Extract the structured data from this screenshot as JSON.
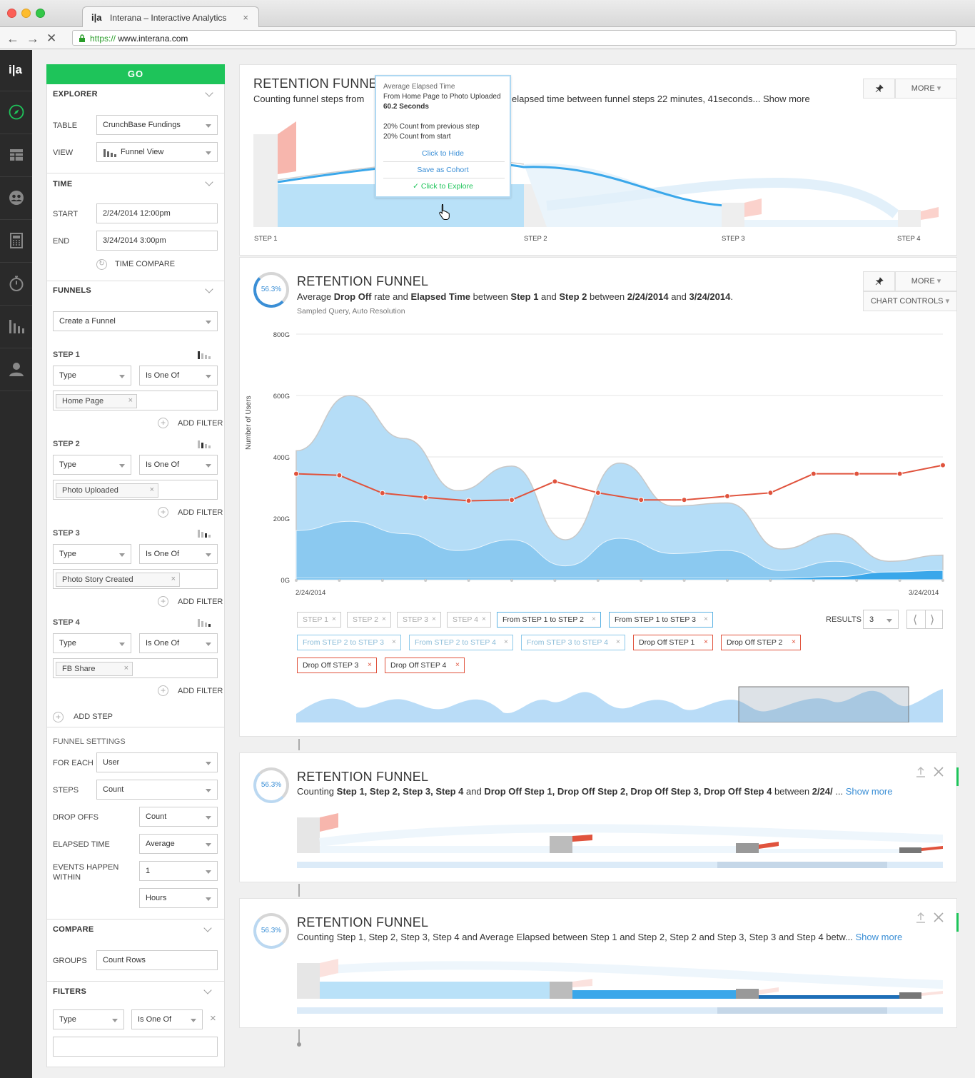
{
  "browser": {
    "tab_title": "Interana – Interactive Analytics",
    "tab_favicon": "i|a",
    "tab_close": "×",
    "url_scheme": "https://",
    "url_host": "www.interana.com"
  },
  "rail": {
    "logo": "i|a",
    "icons": [
      "explore-compass-icon",
      "table-icon",
      "cohort-users-icon",
      "calculator-icon",
      "stopwatch-icon",
      "funnel-bars-icon",
      "user-profile-icon"
    ]
  },
  "panel": {
    "go_label": "GO",
    "explorer": {
      "title": "EXPLORER",
      "table_label": "TABLE",
      "table_value": "CrunchBase Fundings",
      "view_label": "VIEW",
      "view_value": "Funnel  View"
    },
    "time": {
      "title": "TIME",
      "start_label": "START",
      "start_value": "2/24/2014 12:00pm",
      "end_label": "END",
      "end_value": "3/24/2014 3:00pm",
      "compare_label": "TIME COMPARE"
    },
    "funnels": {
      "title": "FUNNELS",
      "create_value": "Create a Funnel",
      "add_filter": "ADD FILTER",
      "add_step": "ADD STEP",
      "steps": [
        {
          "label": "STEP 1",
          "type": "Type",
          "op": "Is One Of",
          "chip": "Home Page"
        },
        {
          "label": "STEP 2",
          "type": "Type",
          "op": "Is One Of",
          "chip": "Photo Uploaded"
        },
        {
          "label": "STEP 3",
          "type": "Type",
          "op": "Is One Of",
          "chip": "Photo Story Created"
        },
        {
          "label": "STEP 4",
          "type": "Type",
          "op": "Is One Of",
          "chip": "FB Share"
        }
      ]
    },
    "settings": {
      "title": "FUNNEL SETTINGS",
      "for_each_label": "FOR EACH",
      "for_each_value": "User",
      "steps_label": "STEPS",
      "steps_value": "Count",
      "dropoffs_label": "DROP OFFS",
      "dropoffs_value": "Count",
      "elapsed_label": "ELAPSED TIME",
      "elapsed_value": "Average",
      "within_label_1": "EVENTS HAPPEN",
      "within_label_2": "WITHIN",
      "within_value": "1",
      "within_unit": "Hours"
    },
    "compare": {
      "title": "COMPARE",
      "groups_label": "GROUPS",
      "groups_value": "Count Rows"
    },
    "filters": {
      "title": "FILTERS",
      "type": "Type",
      "op": "Is One Of",
      "clear": "×"
    }
  },
  "card1": {
    "title": "RETENTION FUNNEL",
    "subtitle_left": "Counting funnel steps from",
    "subtitle_right": "elapsed time between funnel steps 22 minutes, 41seconds...",
    "show_more": "Show more",
    "more": "MORE",
    "steps": [
      "STEP 1",
      "STEP 2",
      "STEP 3",
      "STEP 4"
    ],
    "tooltip": {
      "heading": "Average Elapsed Time",
      "line1": "From Home Page to Photo Uploaded",
      "value": "60.2 Seconds",
      "prev": "20% Count from previous step",
      "start": "20% Count from start",
      "hide": "Click to Hide",
      "cohort": "Save as Cohort",
      "explore": "Click to Explore"
    }
  },
  "card2": {
    "percent": "56.3%",
    "title": "RETENTION FUNNEL",
    "subtitle": {
      "a": "Average ",
      "b": "Drop Off",
      "c": " rate and ",
      "d": "Elapsed Time",
      "e": " between ",
      "f": "Step 1",
      "g": " and ",
      "h": "Step 2",
      "i": " between ",
      "j": "2/24/2014",
      "k": " and ",
      "l": "3/24/2014",
      "m": "."
    },
    "note": "Sampled Query, Auto Resolution",
    "more": "MORE",
    "chart_controls": "CHART CONTROLS",
    "results_label": "RESULTS",
    "results_value": "3",
    "tags": [
      {
        "text": "STEP 1",
        "style": "grey"
      },
      {
        "text": "STEP 2",
        "style": "grey"
      },
      {
        "text": "STEP 3",
        "style": "grey"
      },
      {
        "text": "STEP 4",
        "style": "grey"
      },
      {
        "text": "From STEP 1 to STEP 2",
        "style": "blue2"
      },
      {
        "text": "From STEP 1 to STEP 3",
        "style": "blue2"
      },
      {
        "text": "From STEP 2 to STEP 3",
        "style": "blue"
      },
      {
        "text": "From STEP 2 to STEP 4",
        "style": "blue"
      },
      {
        "text": "From STEP 3 to STEP 4",
        "style": "blue"
      },
      {
        "text": "Drop Off STEP 1",
        "style": "red"
      },
      {
        "text": "Drop Off STEP 2",
        "style": "red"
      },
      {
        "text": "Drop Off STEP 3",
        "style": "red"
      },
      {
        "text": "Drop Off STEP 4",
        "style": "red"
      }
    ]
  },
  "chart_data": {
    "type": "area",
    "ylabel": "Number of Users",
    "x_start": "2/24/2014",
    "x_end": "3/24/2014",
    "y_ticks": [
      "0G",
      "200G",
      "400G",
      "600G",
      "800G"
    ],
    "ylim": [
      0,
      800
    ],
    "grid": true,
    "series": [
      {
        "kind": "area",
        "color": "#b5ddf7",
        "values": [
          420,
          600,
          460,
          290,
          370,
          130,
          380,
          240,
          250,
          100,
          150,
          60,
          80
        ]
      },
      {
        "kind": "area",
        "color": "#8bc9f0",
        "values": [
          160,
          190,
          150,
          95,
          130,
          45,
          135,
          85,
          95,
          30,
          60,
          20,
          25
        ]
      },
      {
        "kind": "area",
        "color": "#3aa7ea",
        "values": [
          5,
          5,
          5,
          5,
          5,
          5,
          5,
          5,
          5,
          5,
          10,
          25,
          30
        ]
      },
      {
        "kind": "line",
        "color": "#e0533d",
        "values": [
          345,
          340,
          282,
          268,
          257,
          260,
          320,
          283,
          260,
          260,
          272,
          283,
          345,
          345,
          345,
          373
        ]
      }
    ]
  },
  "card3": {
    "percent": "56.3%",
    "title": "RETENTION FUNNEL",
    "sub": {
      "a": "Counting ",
      "b": "Step 1, Step 2, Step 3, Step 4",
      "c": " and ",
      "d": "Drop Off Step 1, Drop Off Step 2, Drop Off Step 3, Drop Off Step 4",
      "e": " between ",
      "f": "2/24/",
      "g": " ..."
    },
    "show_more": "Show more"
  },
  "card4": {
    "percent": "56.3%",
    "title": "RETENTION FUNNEL",
    "subtitle": "Counting Step 1, Step 2, Step 3, Step 4 and Average Elapsed between Step 1 and Step 2, Step 2 and Step 3, Step 3 and Step 4 betw...",
    "show_more": "Show more"
  }
}
